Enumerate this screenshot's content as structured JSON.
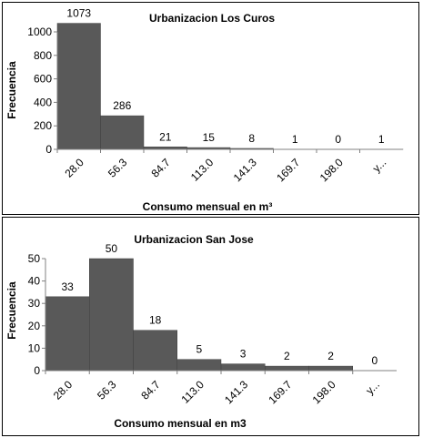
{
  "chart_data": [
    {
      "type": "bar",
      "title": "Urbanizacion Los Curos",
      "xlabel": "Consumo  mensual en m³",
      "ylabel": "Frecuencia",
      "categories": [
        "28.0",
        "56.3",
        "84.7",
        "113.0",
        "141.3",
        "169.7",
        "198.0",
        "y..."
      ],
      "values": [
        1073,
        286,
        21,
        15,
        8,
        1,
        0,
        1
      ],
      "ylim": [
        0,
        1000
      ],
      "yticks": [
        "0",
        "200",
        "400",
        "600",
        "800",
        "1000"
      ],
      "ytick_values": [
        0,
        200,
        400,
        600,
        800,
        1000
      ],
      "grid": false,
      "bar_color": "#595959"
    },
    {
      "type": "bar",
      "title": "Urbanizacion San Jose",
      "xlabel": "Consumo  mensual en m3",
      "ylabel": "Frecuencia",
      "categories": [
        "28.0",
        "56.3",
        "84.7",
        "113.0",
        "141.3",
        "169.7",
        "198.0",
        "y..."
      ],
      "values": [
        33,
        50,
        18,
        5,
        3,
        2,
        2,
        0
      ],
      "ylim": [
        0,
        50
      ],
      "yticks": [
        "0",
        "10",
        "20",
        "30",
        "40",
        "50"
      ],
      "ytick_values": [
        0,
        10,
        20,
        30,
        40,
        50
      ],
      "grid": false,
      "bar_color": "#595959"
    }
  ]
}
